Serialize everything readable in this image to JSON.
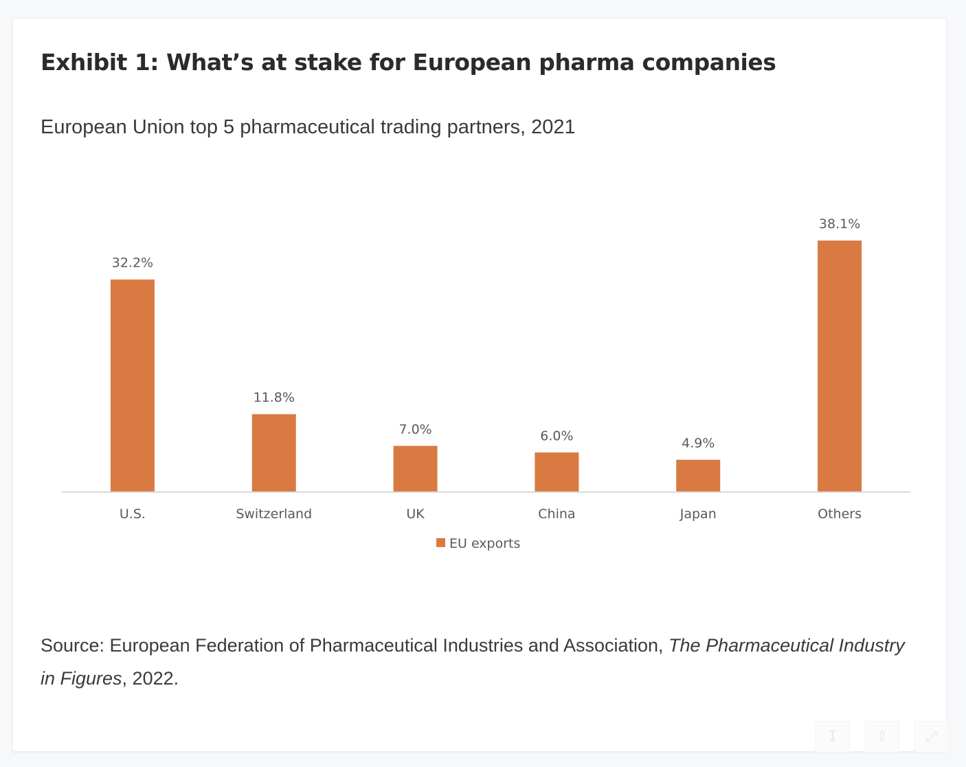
{
  "header": {
    "title": "Exhibit 1: What’s at stake for European pharma companies",
    "subtitle": "European Union top 5 pharmaceutical trading partners, 2021"
  },
  "chart_data": {
    "type": "bar",
    "categories": [
      "U.S.",
      "Switzerland",
      "UK",
      "China",
      "Japan",
      "Others"
    ],
    "series": [
      {
        "name": "EU exports",
        "values": [
          32.2,
          11.8,
          7.0,
          6.0,
          4.9,
          38.1
        ],
        "labels": [
          "32.2%",
          "11.8%",
          "7.0%",
          "6.0%",
          "4.9%",
          "38.1%"
        ]
      }
    ],
    "ylim": [
      0,
      38.1
    ],
    "grid": false,
    "legend_position": "bottom",
    "colors": {
      "bar": "#d97a42",
      "axis": "#d9d9d9",
      "text": "#595959"
    }
  },
  "source": {
    "prefix": "Source: European Federation of Pharmaceutical Industries and Association, ",
    "title_italic": "The Pharmaceutical Industry in Figures",
    "suffix": ", 2022."
  },
  "toolbar": {
    "icons": [
      "download-icon",
      "share-icon",
      "expand-icon"
    ]
  }
}
